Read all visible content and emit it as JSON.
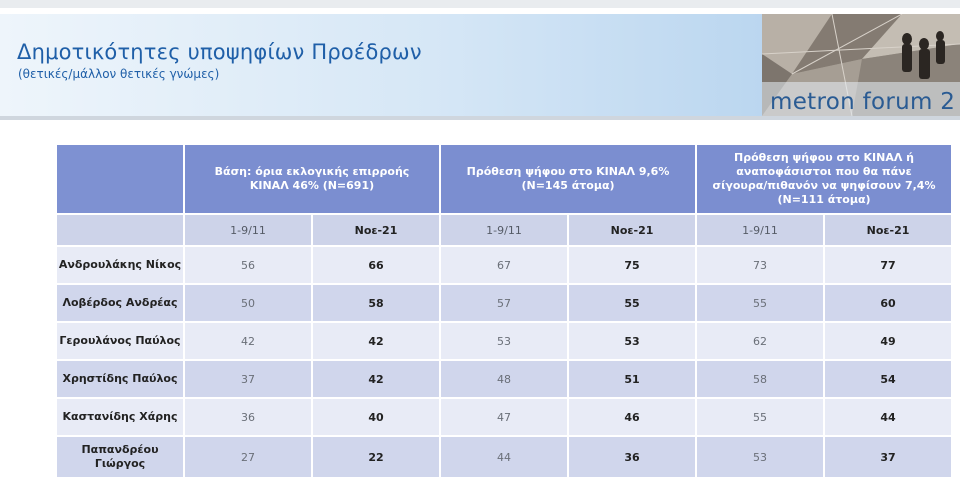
{
  "header": {
    "title": "Δημοτικότητες υποψηφίων Προέδρων",
    "subtitle": "(θετικές/μάλλον θετικές γνώμες)",
    "logo_text": "metron forum 2"
  },
  "table": {
    "groups": [
      "Βάση: όρια εκλογικής επιρροής ΚΙΝΑΛ 46% (N=691)",
      "Πρόθεση ψήφου στο ΚΙΝΑΛ 9,6% (N=145 άτομα)",
      "Πρόθεση ψήφου στο ΚΙΝΑΛ ή αναποφάσιστοι που θα πάνε σίγουρα/πιθανόν να ψηφίσουν 7,4% (N=111 άτομα)"
    ],
    "periods": [
      "1-9/11",
      "Νοε-21"
    ],
    "rows": [
      {
        "name": "Ανδρουλάκης Νίκος",
        "values": [
          "56",
          "66",
          "67",
          "75",
          "73",
          "77"
        ]
      },
      {
        "name": "Λοβέρδος Ανδρέας",
        "values": [
          "50",
          "58",
          "57",
          "55",
          "55",
          "60"
        ]
      },
      {
        "name": "Γερουλάνος Παύλος",
        "values": [
          "42",
          "42",
          "53",
          "53",
          "62",
          "49"
        ]
      },
      {
        "name": "Χρηστίδης Παύλος",
        "values": [
          "37",
          "42",
          "48",
          "51",
          "58",
          "54"
        ]
      },
      {
        "name": "Καστανίδης Χάρης",
        "values": [
          "36",
          "40",
          "47",
          "46",
          "55",
          "44"
        ]
      },
      {
        "name": "Παπανδρέου Γιώργος",
        "values": [
          "27",
          "22",
          "44",
          "36",
          "53",
          "37"
        ]
      }
    ]
  },
  "colors": {
    "header_blue": "#7b8ed0",
    "title_blue": "#1f5fa8",
    "row_light": "#e8ebf6",
    "row_dark": "#d0d6ec"
  }
}
